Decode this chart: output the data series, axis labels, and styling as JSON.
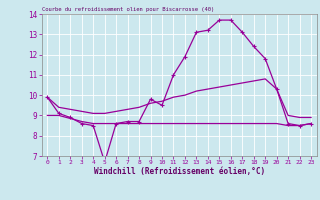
{
  "title": "Courbe du refroidissement olien pour Biscarrosse (40)",
  "xlabel": "Windchill (Refroidissement éolien,°C)",
  "background_color": "#cce8ee",
  "line_color": "#990099",
  "xlim": [
    -0.5,
    23.5
  ],
  "ylim": [
    7,
    14
  ],
  "yticks": [
    7,
    8,
    9,
    10,
    11,
    12,
    13,
    14
  ],
  "xticks": [
    0,
    1,
    2,
    3,
    4,
    5,
    6,
    7,
    8,
    9,
    10,
    11,
    12,
    13,
    14,
    15,
    16,
    17,
    18,
    19,
    20,
    21,
    22,
    23
  ],
  "series1_x": [
    0,
    1,
    2,
    3,
    4,
    5,
    6,
    7,
    8,
    9,
    10,
    11,
    12,
    13,
    14,
    15,
    16,
    17,
    18,
    19,
    20,
    21,
    22,
    23
  ],
  "series1_y": [
    9.9,
    9.1,
    8.9,
    8.6,
    8.5,
    6.7,
    8.6,
    8.7,
    8.7,
    9.8,
    9.5,
    11.0,
    11.9,
    13.1,
    13.2,
    13.7,
    13.7,
    13.1,
    12.4,
    11.8,
    10.3,
    8.6,
    8.5,
    8.6
  ],
  "series2_x": [
    0,
    1,
    2,
    3,
    4,
    5,
    6,
    7,
    8,
    9,
    10,
    11,
    12,
    13,
    14,
    15,
    16,
    17,
    18,
    19,
    20,
    21,
    22,
    23
  ],
  "series2_y": [
    9.0,
    9.0,
    8.85,
    8.7,
    8.6,
    8.6,
    8.6,
    8.6,
    8.6,
    8.6,
    8.6,
    8.6,
    8.6,
    8.6,
    8.6,
    8.6,
    8.6,
    8.6,
    8.6,
    8.6,
    8.6,
    8.5,
    8.5,
    8.6
  ],
  "series3_x": [
    0,
    1,
    2,
    3,
    4,
    5,
    6,
    7,
    8,
    9,
    10,
    11,
    12,
    13,
    14,
    15,
    16,
    17,
    18,
    19,
    20,
    21,
    22,
    23
  ],
  "series3_y": [
    9.9,
    9.4,
    9.3,
    9.2,
    9.1,
    9.1,
    9.2,
    9.3,
    9.4,
    9.6,
    9.7,
    9.9,
    10.0,
    10.2,
    10.3,
    10.4,
    10.5,
    10.6,
    10.7,
    10.8,
    10.3,
    9.0,
    8.9,
    8.9
  ],
  "grid_color": "#ffffff",
  "tick_color": "#990099",
  "label_color": "#660066"
}
